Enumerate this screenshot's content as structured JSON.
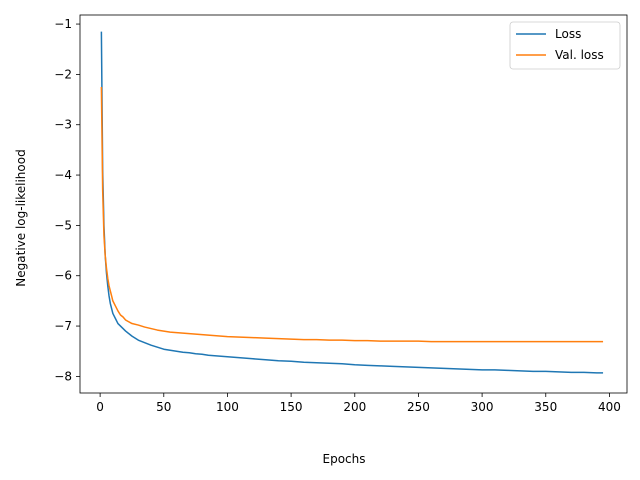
{
  "chart_data": {
    "type": "line",
    "title": "",
    "xlabel": "Epochs",
    "ylabel": "Negative log-likelihood",
    "xlim": [
      -15.8,
      413.8
    ],
    "ylim": [
      -8.33,
      -0.82
    ],
    "xticks": [
      0,
      50,
      100,
      150,
      200,
      250,
      300,
      350,
      400
    ],
    "yticks": [
      -8,
      -7,
      -6,
      -5,
      -4,
      -3,
      -2,
      -1
    ],
    "grid": false,
    "legend_position": "top-right",
    "series": [
      {
        "name": "Loss",
        "color": "#1f77b4",
        "x": [
          1,
          2,
          3,
          4,
          5,
          6,
          7,
          8,
          9,
          10,
          12,
          14,
          16,
          18,
          20,
          25,
          30,
          35,
          40,
          45,
          50,
          55,
          60,
          65,
          70,
          75,
          80,
          85,
          90,
          95,
          100,
          110,
          120,
          130,
          140,
          150,
          160,
          170,
          180,
          190,
          200,
          210,
          220,
          230,
          240,
          250,
          260,
          270,
          280,
          290,
          300,
          310,
          320,
          330,
          340,
          350,
          360,
          370,
          380,
          390,
          395
        ],
        "values": [
          -1.15,
          -3.9,
          -5.0,
          -5.6,
          -5.95,
          -6.2,
          -6.4,
          -6.55,
          -6.65,
          -6.75,
          -6.85,
          -6.95,
          -7.0,
          -7.05,
          -7.1,
          -7.2,
          -7.28,
          -7.33,
          -7.38,
          -7.42,
          -7.46,
          -7.48,
          -7.5,
          -7.52,
          -7.53,
          -7.55,
          -7.56,
          -7.58,
          -7.59,
          -7.6,
          -7.61,
          -7.63,
          -7.65,
          -7.67,
          -7.69,
          -7.7,
          -7.72,
          -7.73,
          -7.74,
          -7.75,
          -7.77,
          -7.78,
          -7.79,
          -7.8,
          -7.81,
          -7.82,
          -7.83,
          -7.84,
          -7.85,
          -7.86,
          -7.87,
          -7.87,
          -7.88,
          -7.89,
          -7.9,
          -7.9,
          -7.91,
          -7.92,
          -7.92,
          -7.93,
          -7.93
        ]
      },
      {
        "name": "Val. loss",
        "color": "#ff7f0e",
        "x": [
          1,
          2,
          3,
          4,
          5,
          6,
          7,
          8,
          9,
          10,
          12,
          14,
          16,
          18,
          20,
          25,
          30,
          35,
          40,
          45,
          50,
          55,
          60,
          65,
          70,
          75,
          80,
          85,
          90,
          95,
          100,
          110,
          120,
          130,
          140,
          150,
          160,
          170,
          180,
          190,
          200,
          210,
          220,
          230,
          240,
          250,
          260,
          270,
          280,
          290,
          300,
          310,
          320,
          330,
          340,
          350,
          360,
          370,
          380,
          390,
          395
        ],
        "values": [
          -2.25,
          -4.3,
          -5.2,
          -5.6,
          -5.85,
          -6.05,
          -6.2,
          -6.3,
          -6.4,
          -6.5,
          -6.6,
          -6.7,
          -6.78,
          -6.82,
          -6.88,
          -6.95,
          -6.98,
          -7.02,
          -7.05,
          -7.08,
          -7.1,
          -7.12,
          -7.13,
          -7.14,
          -7.15,
          -7.16,
          -7.17,
          -7.18,
          -7.19,
          -7.2,
          -7.21,
          -7.22,
          -7.23,
          -7.24,
          -7.25,
          -7.26,
          -7.27,
          -7.27,
          -7.28,
          -7.28,
          -7.29,
          -7.29,
          -7.3,
          -7.3,
          -7.3,
          -7.3,
          -7.31,
          -7.31,
          -7.31,
          -7.31,
          -7.31,
          -7.31,
          -7.31,
          -7.31,
          -7.31,
          -7.31,
          -7.31,
          -7.31,
          -7.31,
          -7.31,
          -7.31
        ]
      }
    ]
  }
}
